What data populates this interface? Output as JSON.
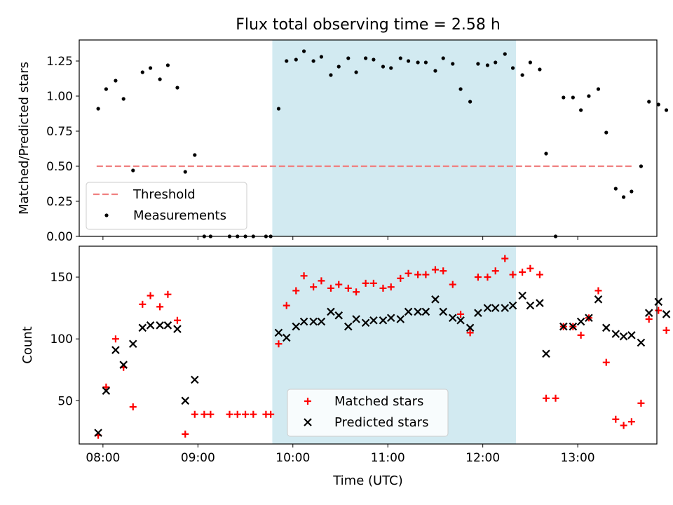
{
  "title": "Flux total observing time = 2.58 h",
  "colors": {
    "shade": "#add8e6",
    "threshold": "#f08080",
    "measurement": "#000000",
    "matched": "#ff0000",
    "predicted": "#000000"
  },
  "chart_data": [
    {
      "type": "scatter",
      "xlabel": "",
      "ylabel": "Matched/Predicted stars",
      "ylim": [
        0,
        1.4
      ],
      "xlim": [
        "07:45",
        "13:50"
      ],
      "yticks": [
        "0.00",
        "0.25",
        "0.50",
        "0.75",
        "1.00",
        "1.25"
      ],
      "shaded_region": [
        "09:47",
        "12:21"
      ],
      "legend": {
        "position": "lower-left",
        "entries": [
          "Threshold",
          "Measurements"
        ]
      },
      "threshold": {
        "name": "Threshold",
        "value": 0.5,
        "x": [
          "07:56",
          "13:35"
        ]
      },
      "series": [
        {
          "name": "Measurements",
          "points": [
            [
              "07:57",
              0.91
            ],
            [
              "08:02",
              1.05
            ],
            [
              "08:08",
              1.11
            ],
            [
              "08:13",
              0.98
            ],
            [
              "08:19",
              0.47
            ],
            [
              "08:25",
              1.17
            ],
            [
              "08:30",
              1.2
            ],
            [
              "08:36",
              1.12
            ],
            [
              "08:41",
              1.22
            ],
            [
              "08:47",
              1.06
            ],
            [
              "08:52",
              0.46
            ],
            [
              "08:58",
              0.58
            ],
            [
              "09:04",
              0.0
            ],
            [
              "09:08",
              0.0
            ],
            [
              "09:20",
              0.0
            ],
            [
              "09:25",
              0.0
            ],
            [
              "09:30",
              0.0
            ],
            [
              "09:35",
              0.0
            ],
            [
              "09:43",
              0.0
            ],
            [
              "09:46",
              0.0
            ],
            [
              "09:51",
              0.91
            ],
            [
              "09:56",
              1.25
            ],
            [
              "10:02",
              1.26
            ],
            [
              "10:07",
              1.32
            ],
            [
              "10:13",
              1.25
            ],
            [
              "10:18",
              1.28
            ],
            [
              "10:24",
              1.15
            ],
            [
              "10:29",
              1.21
            ],
            [
              "10:35",
              1.27
            ],
            [
              "10:40",
              1.17
            ],
            [
              "10:46",
              1.27
            ],
            [
              "10:51",
              1.26
            ],
            [
              "10:57",
              1.21
            ],
            [
              "11:02",
              1.2
            ],
            [
              "11:08",
              1.27
            ],
            [
              "11:13",
              1.25
            ],
            [
              "11:19",
              1.24
            ],
            [
              "11:24",
              1.24
            ],
            [
              "11:30",
              1.18
            ],
            [
              "11:35",
              1.27
            ],
            [
              "11:41",
              1.23
            ],
            [
              "11:46",
              1.05
            ],
            [
              "11:52",
              0.96
            ],
            [
              "11:57",
              1.23
            ],
            [
              "12:03",
              1.22
            ],
            [
              "12:08",
              1.24
            ],
            [
              "12:14",
              1.3
            ],
            [
              "12:19",
              1.2
            ],
            [
              "12:25",
              1.15
            ],
            [
              "12:30",
              1.24
            ],
            [
              "12:36",
              1.19
            ],
            [
              "12:40",
              0.59
            ],
            [
              "12:46",
              0.0
            ],
            [
              "12:51",
              0.99
            ],
            [
              "12:57",
              0.99
            ],
            [
              "13:02",
              0.9
            ],
            [
              "13:07",
              1.0
            ],
            [
              "13:13",
              1.05
            ],
            [
              "13:18",
              0.74
            ],
            [
              "13:24",
              0.34
            ],
            [
              "13:29",
              0.28
            ],
            [
              "13:34",
              0.32
            ],
            [
              "13:40",
              0.5
            ],
            [
              "13:45",
              0.96
            ],
            [
              "13:51",
              0.94
            ],
            [
              "13:56",
              0.9
            ]
          ]
        }
      ]
    },
    {
      "type": "scatter",
      "xlabel": "Time (UTC)",
      "ylabel": "Count",
      "ylim": [
        15,
        175
      ],
      "xlim": [
        "07:45",
        "13:50"
      ],
      "yticks": [
        50,
        100,
        150
      ],
      "xticks": [
        "08:00",
        "09:00",
        "10:00",
        "11:00",
        "12:00",
        "13:00"
      ],
      "shaded_region": [
        "09:47",
        "12:21"
      ],
      "legend": {
        "position": "lower-center",
        "entries": [
          "Matched stars",
          "Predicted stars"
        ]
      },
      "series": [
        {
          "name": "Matched stars",
          "marker": "plus",
          "points": [
            [
              "07:57",
              22
            ],
            [
              "08:02",
              61
            ],
            [
              "08:08",
              100
            ],
            [
              "08:13",
              77
            ],
            [
              "08:19",
              45
            ],
            [
              "08:25",
              128
            ],
            [
              "08:30",
              135
            ],
            [
              "08:36",
              126
            ],
            [
              "08:41",
              136
            ],
            [
              "08:47",
              115
            ],
            [
              "08:52",
              23
            ],
            [
              "08:58",
              39
            ],
            [
              "09:04",
              39
            ],
            [
              "09:08",
              39
            ],
            [
              "09:20",
              39
            ],
            [
              "09:25",
              39
            ],
            [
              "09:30",
              39
            ],
            [
              "09:35",
              39
            ],
            [
              "09:43",
              39
            ],
            [
              "09:46",
              39
            ],
            [
              "09:51",
              96
            ],
            [
              "09:56",
              127
            ],
            [
              "10:02",
              139
            ],
            [
              "10:07",
              151
            ],
            [
              "10:13",
              142
            ],
            [
              "10:18",
              147
            ],
            [
              "10:24",
              141
            ],
            [
              "10:29",
              144
            ],
            [
              "10:35",
              141
            ],
            [
              "10:40",
              138
            ],
            [
              "10:46",
              145
            ],
            [
              "10:51",
              145
            ],
            [
              "10:57",
              141
            ],
            [
              "11:02",
              142
            ],
            [
              "11:08",
              149
            ],
            [
              "11:13",
              153
            ],
            [
              "11:19",
              152
            ],
            [
              "11:24",
              152
            ],
            [
              "11:30",
              156
            ],
            [
              "11:35",
              155
            ],
            [
              "11:41",
              144
            ],
            [
              "11:46",
              120
            ],
            [
              "11:52",
              105
            ],
            [
              "11:57",
              150
            ],
            [
              "12:03",
              150
            ],
            [
              "12:08",
              155
            ],
            [
              "12:14",
              165
            ],
            [
              "12:19",
              152
            ],
            [
              "12:25",
              154
            ],
            [
              "12:30",
              157
            ],
            [
              "12:36",
              152
            ],
            [
              "12:40",
              52
            ],
            [
              "12:46",
              52
            ],
            [
              "12:51",
              110
            ],
            [
              "12:57",
              110
            ],
            [
              "13:02",
              103
            ],
            [
              "13:07",
              117
            ],
            [
              "13:13",
              139
            ],
            [
              "13:18",
              81
            ],
            [
              "13:24",
              35
            ],
            [
              "13:29",
              30
            ],
            [
              "13:34",
              33
            ],
            [
              "13:40",
              48
            ],
            [
              "13:45",
              116
            ],
            [
              "13:51",
              123
            ],
            [
              "13:56",
              107
            ]
          ]
        },
        {
          "name": "Predicted stars",
          "marker": "x",
          "points": [
            [
              "07:57",
              24
            ],
            [
              "08:02",
              58
            ],
            [
              "08:08",
              91
            ],
            [
              "08:13",
              79
            ],
            [
              "08:19",
              96
            ],
            [
              "08:25",
              109
            ],
            [
              "08:30",
              111
            ],
            [
              "08:36",
              111
            ],
            [
              "08:41",
              111
            ],
            [
              "08:47",
              108
            ],
            [
              "08:52",
              50
            ],
            [
              "08:58",
              67
            ],
            [
              "09:51",
              105
            ],
            [
              "09:56",
              101
            ],
            [
              "10:02",
              110
            ],
            [
              "10:07",
              114
            ],
            [
              "10:13",
              114
            ],
            [
              "10:18",
              114
            ],
            [
              "10:24",
              122
            ],
            [
              "10:29",
              119
            ],
            [
              "10:35",
              110
            ],
            [
              "10:40",
              116
            ],
            [
              "10:46",
              113
            ],
            [
              "10:51",
              115
            ],
            [
              "10:57",
              115
            ],
            [
              "11:02",
              117
            ],
            [
              "11:08",
              116
            ],
            [
              "11:13",
              122
            ],
            [
              "11:19",
              122
            ],
            [
              "11:24",
              122
            ],
            [
              "11:30",
              132
            ],
            [
              "11:35",
              122
            ],
            [
              "11:41",
              117
            ],
            [
              "11:46",
              115
            ],
            [
              "11:52",
              109
            ],
            [
              "11:57",
              121
            ],
            [
              "12:03",
              125
            ],
            [
              "12:08",
              125
            ],
            [
              "12:14",
              125
            ],
            [
              "12:19",
              127
            ],
            [
              "12:25",
              135
            ],
            [
              "12:30",
              127
            ],
            [
              "12:36",
              129
            ],
            [
              "12:40",
              88
            ],
            [
              "12:51",
              110
            ],
            [
              "12:57",
              110
            ],
            [
              "13:02",
              114
            ],
            [
              "13:07",
              117
            ],
            [
              "13:13",
              132
            ],
            [
              "13:18",
              109
            ],
            [
              "13:24",
              104
            ],
            [
              "13:29",
              102
            ],
            [
              "13:34",
              103
            ],
            [
              "13:40",
              97
            ],
            [
              "13:45",
              121
            ],
            [
              "13:51",
              130
            ],
            [
              "13:56",
              120
            ]
          ]
        }
      ]
    }
  ]
}
